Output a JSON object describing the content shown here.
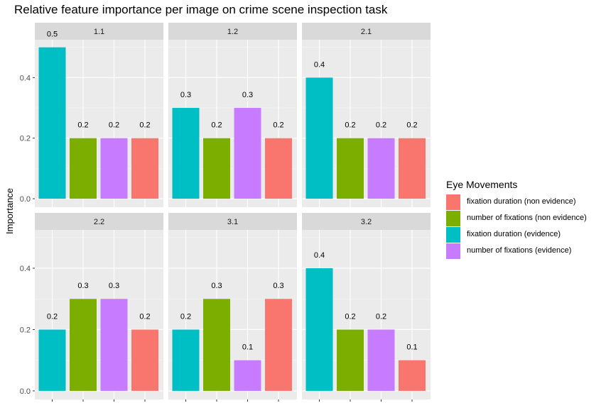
{
  "chart_data": {
    "type": "bar",
    "title": "Relative feature importance per image on crime scene inspection task",
    "xlabel": "",
    "ylabel": "Importance",
    "ylim": [
      0,
      0.5
    ],
    "y_ticks": [
      0.0,
      0.2,
      0.4
    ],
    "y_tick_labels": [
      "0.0",
      "0.2",
      "0.4"
    ],
    "grid": true,
    "legend_position": "right",
    "legend_title": "Eye Movements",
    "legend": [
      {
        "label": "fixation duration (non evidence)",
        "color": "#F8766D"
      },
      {
        "label": "number of fixations (non evidence)",
        "color": "#7CAE00"
      },
      {
        "label": "fixation duration (evidence)",
        "color": "#00BFC4"
      },
      {
        "label": "number of fixations (evidence)",
        "color": "#C77CFF"
      }
    ],
    "bar_order": [
      "fixation duration (evidence)",
      "number of fixations (non evidence)",
      "number of fixations (evidence)",
      "fixation duration (non evidence)"
    ],
    "bar_colors": [
      "#00BFC4",
      "#7CAE00",
      "#C77CFF",
      "#F8766D"
    ],
    "panels": [
      {
        "label": "1.1",
        "values": [
          0.5,
          0.2,
          0.2,
          0.2
        ],
        "labels": [
          "0.5",
          "0.2",
          "0.2",
          "0.2"
        ]
      },
      {
        "label": "1.2",
        "values": [
          0.3,
          0.2,
          0.3,
          0.2
        ],
        "labels": [
          "0.3",
          "0.2",
          "0.3",
          "0.2"
        ]
      },
      {
        "label": "2.1",
        "values": [
          0.4,
          0.2,
          0.2,
          0.2
        ],
        "labels": [
          "0.4",
          "0.2",
          "0.2",
          "0.2"
        ]
      },
      {
        "label": "2.2",
        "values": [
          0.2,
          0.3,
          0.3,
          0.2
        ],
        "labels": [
          "0.2",
          "0.3",
          "0.3",
          "0.2"
        ]
      },
      {
        "label": "3.1",
        "values": [
          0.2,
          0.3,
          0.1,
          0.3
        ],
        "labels": [
          "0.2",
          "0.3",
          "0.1",
          "0.3"
        ]
      },
      {
        "label": "3.2",
        "values": [
          0.4,
          0.2,
          0.2,
          0.1
        ],
        "labels": [
          "0.4",
          "0.2",
          "0.2",
          "0.1"
        ]
      }
    ]
  }
}
